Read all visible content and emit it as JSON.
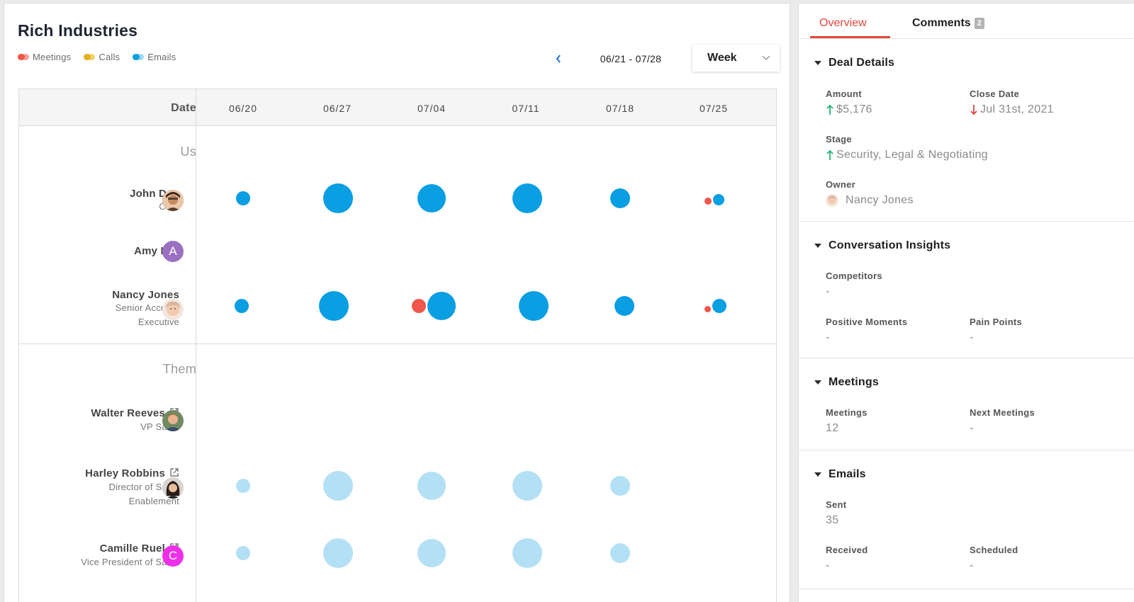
{
  "header": {
    "title": "Rich Industries",
    "date_range": "06/21 - 07/28",
    "period": "Week"
  },
  "legend": [
    {
      "label": "Meetings",
      "color_a": "#f0564a",
      "color_b": "#f7a097"
    },
    {
      "label": "Calls",
      "color_a": "#e5b21c",
      "color_b": "#f2d36b"
    },
    {
      "label": "Emails",
      "color_a": "#0a9ee2",
      "color_b": "#9fd8f3"
    }
  ],
  "timeline": {
    "date_header": "Date",
    "columns": [
      "06/20",
      "06/27",
      "07/04",
      "07/11",
      "07/18",
      "07/25"
    ],
    "groups": {
      "us": "Us",
      "them": "Them"
    },
    "people": [
      {
        "name": "John Doe",
        "title": "CEO",
        "group": "us",
        "avatar": "photo-man"
      },
      {
        "name": "Amy Lee",
        "title": "",
        "group": "us",
        "avatar_letter": "A",
        "avatar_color": "#9c70c1"
      },
      {
        "name": "Nancy Jones",
        "title_line1": "Senior Account",
        "title_line2": "Executive",
        "group": "us",
        "avatar": "photo-woman"
      },
      {
        "name": "Walter Reeves",
        "title": "VP Sales",
        "group": "them",
        "avatar": "photo-man-2"
      },
      {
        "name": "Harley Robbins",
        "title_line1": "Director of Sales",
        "title_line2": "Enablement",
        "group": "them",
        "avatar": "photo-woman-2"
      },
      {
        "name": "Camille Ruel",
        "title": "Vice President of Sales",
        "group": "them",
        "avatar_letter": "C",
        "avatar_color": "#ee2fe8"
      }
    ],
    "colors": {
      "email": "#0a9ee2",
      "email_light": "#b3e0f5",
      "meeting": "#f0564a"
    }
  },
  "panel": {
    "tabs": {
      "overview": "Overview",
      "comments": "Comments",
      "comments_count": "2"
    },
    "deal_details": {
      "title": "Deal Details",
      "amount_label": "Amount",
      "amount_value": "$5,176",
      "close_label": "Close Date",
      "close_value": "Jul 31st, 2021",
      "stage_label": "Stage",
      "stage_value": "Security, Legal & Negotiating",
      "owner_label": "Owner",
      "owner_value": "Nancy Jones"
    },
    "insights": {
      "title": "Conversation Insights",
      "competitors_label": "Competitors",
      "competitors_value": "-",
      "positive_label": "Positive Moments",
      "positive_value": "-",
      "pain_label": "Pain Points",
      "pain_value": "-"
    },
    "meetings": {
      "title": "Meetings",
      "meetings_label": "Meetings",
      "meetings_value": "12",
      "next_label": "Next Meetings",
      "next_value": "-"
    },
    "emails": {
      "title": "Emails",
      "sent_label": "Sent",
      "sent_value": "35",
      "received_label": "Received",
      "received_value": "-",
      "scheduled_label": "Scheduled",
      "scheduled_value": "-"
    },
    "status_colors": {
      "up": "#22b573",
      "down": "#e4463b"
    }
  }
}
